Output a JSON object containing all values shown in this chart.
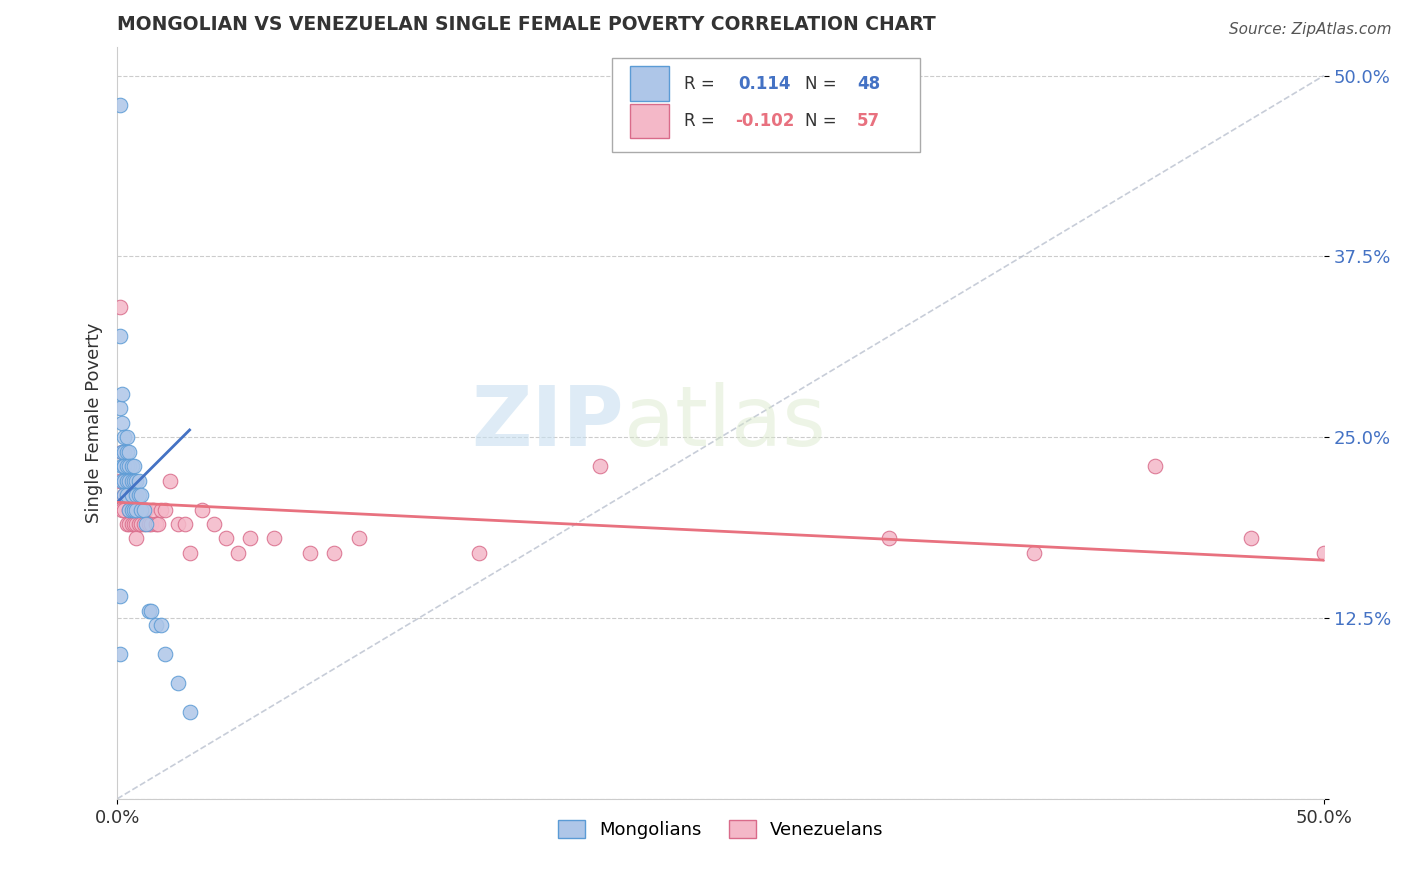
{
  "title": "MONGOLIAN VS VENEZUELAN SINGLE FEMALE POVERTY CORRELATION CHART",
  "source": "Source: ZipAtlas.com",
  "ylabel": "Single Female Poverty",
  "legend_mongolians": "Mongolians",
  "legend_venezuelans": "Venezuelans",
  "mongolian_R": "0.114",
  "mongolian_N": "48",
  "venezuelan_R": "-0.102",
  "venezuelan_N": "57",
  "xlim": [
    0.0,
    0.5
  ],
  "ylim": [
    0.0,
    0.52
  ],
  "yticks": [
    0.0,
    0.125,
    0.25,
    0.375,
    0.5
  ],
  "ytick_labels": [
    "",
    "12.5%",
    "25.0%",
    "37.5%",
    "50.0%"
  ],
  "background_color": "#ffffff",
  "plot_bg_color": "#ffffff",
  "grid_color": "#cccccc",
  "mongolian_color": "#aec6e8",
  "mongolian_edge": "#5b9bd5",
  "venezuelan_color": "#f4b8c8",
  "venezuelan_edge": "#d96b8a",
  "mongolian_line_color": "#4472c4",
  "venezuelan_line_color": "#e8717f",
  "watermark_zip": "ZIP",
  "watermark_atlas": "atlas",
  "mongolians_x": [
    0.001,
    0.001,
    0.001,
    0.001,
    0.001,
    0.002,
    0.002,
    0.002,
    0.002,
    0.002,
    0.003,
    0.003,
    0.003,
    0.003,
    0.003,
    0.003,
    0.004,
    0.004,
    0.004,
    0.004,
    0.004,
    0.005,
    0.005,
    0.005,
    0.005,
    0.006,
    0.006,
    0.006,
    0.006,
    0.007,
    0.007,
    0.007,
    0.008,
    0.008,
    0.008,
    0.009,
    0.009,
    0.01,
    0.01,
    0.011,
    0.012,
    0.013,
    0.014,
    0.016,
    0.018,
    0.02,
    0.025,
    0.03
  ],
  "mongolians_y": [
    0.48,
    0.32,
    0.27,
    0.14,
    0.1,
    0.28,
    0.26,
    0.24,
    0.23,
    0.22,
    0.25,
    0.24,
    0.23,
    0.23,
    0.22,
    0.21,
    0.25,
    0.24,
    0.23,
    0.22,
    0.21,
    0.24,
    0.23,
    0.22,
    0.2,
    0.23,
    0.22,
    0.21,
    0.2,
    0.23,
    0.22,
    0.2,
    0.22,
    0.21,
    0.2,
    0.22,
    0.21,
    0.21,
    0.2,
    0.2,
    0.19,
    0.13,
    0.13,
    0.12,
    0.12,
    0.1,
    0.08,
    0.06
  ],
  "venezuelans_x": [
    0.001,
    0.001,
    0.002,
    0.002,
    0.003,
    0.003,
    0.003,
    0.004,
    0.004,
    0.004,
    0.005,
    0.005,
    0.005,
    0.006,
    0.006,
    0.006,
    0.007,
    0.007,
    0.007,
    0.008,
    0.008,
    0.008,
    0.009,
    0.009,
    0.01,
    0.01,
    0.01,
    0.011,
    0.011,
    0.012,
    0.013,
    0.014,
    0.015,
    0.016,
    0.017,
    0.018,
    0.02,
    0.022,
    0.025,
    0.028,
    0.03,
    0.035,
    0.04,
    0.045,
    0.05,
    0.055,
    0.065,
    0.08,
    0.09,
    0.1,
    0.15,
    0.2,
    0.32,
    0.38,
    0.43,
    0.47,
    0.5
  ],
  "venezuelans_y": [
    0.34,
    0.22,
    0.24,
    0.2,
    0.22,
    0.21,
    0.2,
    0.22,
    0.21,
    0.19,
    0.22,
    0.2,
    0.19,
    0.21,
    0.2,
    0.19,
    0.21,
    0.2,
    0.19,
    0.2,
    0.19,
    0.18,
    0.2,
    0.19,
    0.2,
    0.2,
    0.19,
    0.2,
    0.19,
    0.2,
    0.19,
    0.19,
    0.2,
    0.19,
    0.19,
    0.2,
    0.2,
    0.22,
    0.19,
    0.19,
    0.17,
    0.2,
    0.19,
    0.18,
    0.17,
    0.18,
    0.18,
    0.17,
    0.17,
    0.18,
    0.17,
    0.23,
    0.18,
    0.17,
    0.23,
    0.18,
    0.17
  ],
  "mong_line_x0": 0.0,
  "mong_line_x1": 0.03,
  "mong_line_y0": 0.205,
  "mong_line_y1": 0.255,
  "ven_line_x0": 0.0,
  "ven_line_x1": 0.5,
  "ven_line_y0": 0.205,
  "ven_line_y1": 0.165,
  "diag_line_x0": 0.0,
  "diag_line_x1": 0.5,
  "diag_line_y0": 0.0,
  "diag_line_y1": 0.5
}
